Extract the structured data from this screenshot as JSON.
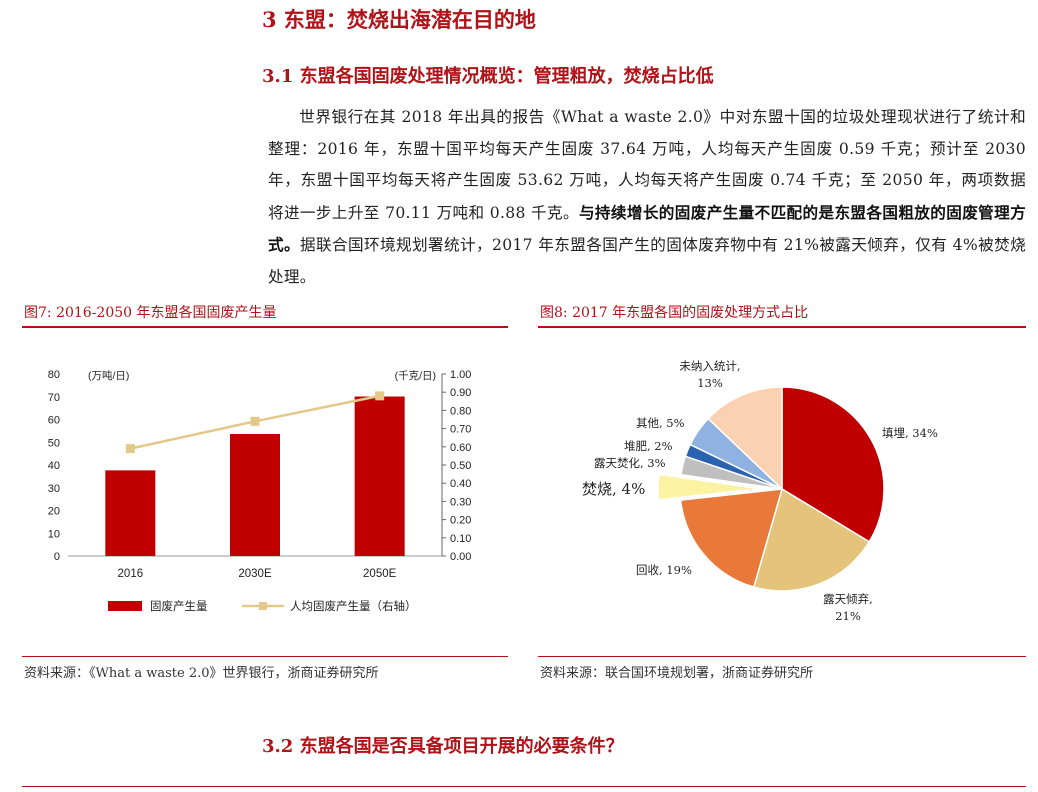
{
  "heading1": "3 东盟：焚烧出海潜在目的地",
  "heading2": "3.1 东盟各国固废处理情况概览：管理粗放，焚烧占比低",
  "paragraph": {
    "part1": "世界银行在其 2018 年出具的报告《What a waste 2.0》中对东盟十国的垃圾处理现状进行了统计和整理：2016 年，东盟十国平均每天产生固废 37.64 万吨，人均每天产生固废 0.59 千克；预计至 2030 年，东盟十国平均每天将产生固废 53.62 万吨，人均每天将产生固废 0.74 千克；至 2050 年，两项数据将进一步上升至 70.11 万吨和 0.88 千克。",
    "bold": "与持续增长的固废产生量不匹配的是东盟各国粗放的固废管理方式。",
    "part2": "据联合国环境规划署统计，2017 年东盟各国产生的固体废弃物中有 21%被露天倾弃，仅有 4%被焚烧处理。"
  },
  "figure7": {
    "title": "图7:   2016-2050 年东盟各国固废产生量",
    "source": "资料来源：《What a waste 2.0》世界银行，浙商证券研究所"
  },
  "figure8": {
    "title": "图8:   2017 年东盟各国的固废处理方式占比",
    "source": "资料来源：联合国环境规划署，浙商证券研究所"
  },
  "heading3": "3.2 东盟各国是否具备项目开展的必要条件？",
  "chart_data": [
    {
      "type": "bar",
      "categories": [
        "2016",
        "2030E",
        "2050E"
      ],
      "series": [
        {
          "name": "固废产生量",
          "kind": "bar",
          "axis": "left",
          "color": "#c00000",
          "values": [
            37.64,
            53.62,
            70.11
          ]
        },
        {
          "name": "人均固废产生量（右轴）",
          "kind": "line",
          "axis": "right",
          "color": "#e3c88a",
          "values": [
            0.59,
            0.74,
            0.88
          ]
        }
      ],
      "left_axis": {
        "label": "(万吨/日)",
        "min": 0,
        "max": 80,
        "step": 10,
        "ticks": [
          "0",
          "10",
          "20",
          "30",
          "40",
          "50",
          "60",
          "70",
          "80"
        ]
      },
      "right_axis": {
        "label": "(千克/日)",
        "min": 0,
        "max": 1,
        "step": 0.1,
        "ticks": [
          "0.00",
          "0.10",
          "0.20",
          "0.30",
          "0.40",
          "0.50",
          "0.60",
          "0.70",
          "0.80",
          "0.90",
          "1.00"
        ]
      },
      "legend_position": "bottom"
    },
    {
      "type": "pie",
      "slices": [
        {
          "label": "填埋, 34%",
          "value": 34,
          "color": "#c00000"
        },
        {
          "label": "露天倾弃,\n21%",
          "value": 21,
          "color": "#e3c47a"
        },
        {
          "label": "回收, 19%",
          "value": 19,
          "color": "#e8793a"
        },
        {
          "label": "焚烧, 4%",
          "value": 4,
          "color": "#fbf2a2",
          "exploded": true
        },
        {
          "label": "露天焚化, 3%",
          "value": 3,
          "color": "#bfbfbf"
        },
        {
          "label": "堆肥, 2%",
          "value": 2,
          "color": "#2a62b0"
        },
        {
          "label": "其他, 5%",
          "value": 5,
          "color": "#8fb2e3"
        },
        {
          "label": "未纳入统计,\n13%",
          "value": 13,
          "color": "#fad2b2"
        }
      ]
    }
  ]
}
